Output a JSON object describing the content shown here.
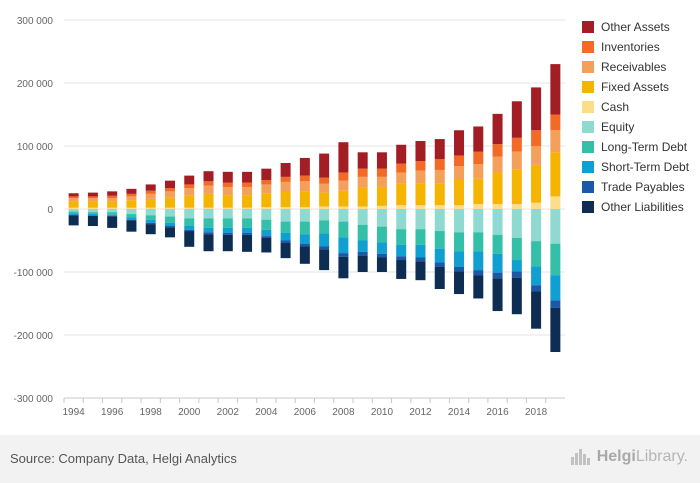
{
  "chart_data": {
    "type": "bar",
    "stacked": true,
    "x": [
      "1994",
      "1995",
      "1996",
      "1997",
      "1998",
      "1999",
      "2000",
      "2001",
      "2002",
      "2003",
      "2004",
      "2005",
      "2006",
      "2007",
      "2008",
      "2009",
      "2010",
      "2011",
      "2012",
      "2013",
      "2014",
      "2015",
      "2016",
      "2017",
      "2018",
      "2019"
    ],
    "x_tick_labels": [
      "1994",
      "1996",
      "1998",
      "2000",
      "2002",
      "2004",
      "2006",
      "2008",
      "2010",
      "2012",
      "2014",
      "2016",
      "2018"
    ],
    "y_ticks": [
      -300000,
      -200000,
      -100000,
      0,
      100000,
      200000,
      300000
    ],
    "y_tick_labels": [
      "-300 000",
      "-200 000",
      "-100 000",
      "0",
      "100 000",
      "200 000",
      "300 000"
    ],
    "ylim": [
      -300000,
      300000
    ],
    "grid": true,
    "legend_position": "right",
    "series": [
      {
        "name": "Other Assets",
        "color": "#a31d24",
        "values": [
          5000,
          6000,
          7000,
          8000,
          10000,
          12000,
          14000,
          16000,
          17000,
          17000,
          18000,
          22000,
          28000,
          38000,
          48000,
          26000,
          26000,
          30000,
          32000,
          32000,
          40000,
          40000,
          48000,
          58000,
          68000,
          80000
        ]
      },
      {
        "name": "Inventories",
        "color": "#f36a27",
        "values": [
          3000,
          3000,
          4000,
          4000,
          5000,
          5000,
          6000,
          7000,
          7000,
          7000,
          7000,
          8000,
          9000,
          10000,
          13000,
          13000,
          13000,
          14000,
          15000,
          17000,
          17000,
          20000,
          20000,
          22000,
          25000,
          25000
        ]
      },
      {
        "name": "Receivables",
        "color": "#f5a05a",
        "values": [
          5000,
          5000,
          5000,
          6000,
          8000,
          10000,
          12000,
          13000,
          13000,
          13000,
          14000,
          16000,
          16000,
          14000,
          16000,
          17000,
          16000,
          18000,
          20000,
          21000,
          22000,
          23000,
          25000,
          28000,
          30000,
          35000
        ]
      },
      {
        "name": "Fixed Assets",
        "color": "#f5b400",
        "values": [
          10000,
          10000,
          10000,
          12000,
          14000,
          16000,
          19000,
          22000,
          20000,
          20000,
          22000,
          24000,
          25000,
          22000,
          25000,
          30000,
          30000,
          34000,
          35000,
          35000,
          40000,
          40000,
          50000,
          55000,
          60000,
          70000
        ]
      },
      {
        "name": "Cash",
        "color": "#fddc8a",
        "values": [
          2000,
          2000,
          2000,
          2000,
          2000,
          2000,
          2000,
          2000,
          2000,
          2000,
          3000,
          3000,
          3000,
          4000,
          4000,
          4000,
          5000,
          6000,
          6000,
          6000,
          6000,
          8000,
          8000,
          8000,
          10000,
          20000
        ]
      },
      {
        "name": "Equity",
        "color": "#8ed9d0",
        "values": [
          -4000,
          -5000,
          -5000,
          -8000,
          -10000,
          -12000,
          -15000,
          -15000,
          -15000,
          -15000,
          -17000,
          -20000,
          -20000,
          -18000,
          -20000,
          -25000,
          -28000,
          -32000,
          -32000,
          -35000,
          -37000,
          -37000,
          -41000,
          -46000,
          -51000,
          -55000
        ]
      },
      {
        "name": "Long-Term Debt",
        "color": "#34bfa8",
        "values": [
          -3000,
          -3000,
          -4000,
          -5000,
          -7000,
          -10000,
          -12000,
          -15000,
          -15000,
          -15000,
          -16000,
          -18000,
          -20000,
          -21000,
          -25000,
          -25000,
          -25000,
          -25000,
          -25000,
          -28000,
          -30000,
          -30000,
          -30000,
          -35000,
          -40000,
          -50000
        ]
      },
      {
        "name": "Short-Term Debt",
        "color": "#0f9fd1",
        "values": [
          -2000,
          -2000,
          -2000,
          -4000,
          -5000,
          -5000,
          -6000,
          -7000,
          -8000,
          -8000,
          -10000,
          -12000,
          -15000,
          -20000,
          -25000,
          -18000,
          -18000,
          -18000,
          -20000,
          -22000,
          -25000,
          -30000,
          -30000,
          -18000,
          -30000,
          -40000
        ]
      },
      {
        "name": "Trade Payables",
        "color": "#1b58a8",
        "values": [
          -1000,
          -1000,
          -1000,
          -1000,
          -2000,
          -2000,
          -2000,
          -3000,
          -3000,
          -3000,
          -3000,
          -4000,
          -4000,
          -5000,
          -6000,
          -6000,
          -6000,
          -6000,
          -6000,
          -7000,
          -7000,
          -8000,
          -9000,
          -10000,
          -10000,
          -12000
        ]
      },
      {
        "name": "Other Liabilities",
        "color": "#0e2d52",
        "values": [
          -16000,
          -16000,
          -18000,
          -18000,
          -16000,
          -16000,
          -25000,
          -27000,
          -26000,
          -27000,
          -23000,
          -24000,
          -28000,
          -33000,
          -34000,
          -26000,
          -23000,
          -30000,
          -30000,
          -35000,
          -36000,
          -37000,
          -52000,
          -58000,
          -59000,
          -70000
        ]
      }
    ]
  },
  "footer": {
    "source": "Source: Company Data, Helgi Analytics",
    "brand_prefix": "Helgi",
    "brand_suffix": "Library."
  }
}
